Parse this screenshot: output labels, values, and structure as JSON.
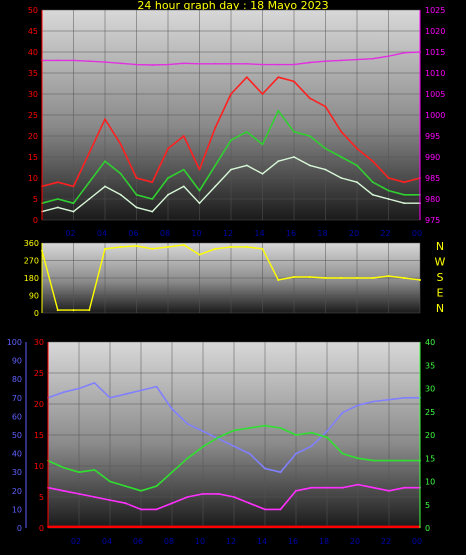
{
  "title": "24 hour graph day : 18 Mayo 2023",
  "colors": {
    "gust": "#ff2020",
    "speed_avg": "#30d030",
    "speed": "#d8f8d8",
    "pressure": "#e030e0",
    "direction": "#ffff00",
    "temperature": "#ff30ff",
    "humidity": "#8080ff",
    "tempB": "#30e030",
    "rain": "#ff0000",
    "axis_left1": "#ff0000",
    "axis_right1": "#ff00ff",
    "axis_blue": "#6060ff",
    "axis_green": "#40ff40",
    "tick_x": "#0000aa"
  },
  "direction_labels": [
    "N",
    "W",
    "S",
    "E",
    "N"
  ],
  "chart_data": [
    {
      "type": "line",
      "name": "wind",
      "xticks": [
        "02",
        "04",
        "06",
        "08",
        "10",
        "12",
        "14",
        "16",
        "18",
        "20",
        "22",
        "00"
      ],
      "y_left_ticks": [
        "0",
        "5",
        "10",
        "15",
        "20",
        "25",
        "30",
        "35",
        "40",
        "45",
        "50"
      ],
      "y_right_ticks": [
        "975",
        "980",
        "985",
        "990",
        "995",
        "1000",
        "1005",
        "1010",
        "1015",
        "1020",
        "1025"
      ],
      "ylim": [
        0,
        50
      ],
      "ylim_right": [
        975,
        1025
      ],
      "x": [
        0,
        1,
        2,
        3,
        4,
        5,
        6,
        7,
        8,
        9,
        10,
        11,
        12,
        13,
        14,
        15,
        16,
        17,
        18,
        19,
        20,
        21,
        22,
        23,
        24
      ],
      "series": [
        {
          "key": "gust",
          "values": [
            8,
            9,
            8,
            16,
            24,
            18,
            10,
            9,
            17,
            20,
            12,
            22,
            30,
            34,
            30,
            34,
            33,
            29,
            27,
            21,
            17,
            14,
            10,
            9,
            10
          ]
        },
        {
          "key": "speed_avg",
          "values": [
            4,
            5,
            4,
            9,
            14,
            11,
            6,
            5,
            10,
            12,
            7,
            13,
            19,
            21,
            18,
            26,
            21,
            20,
            17,
            15,
            13,
            9,
            7,
            6,
            6
          ]
        },
        {
          "key": "speed",
          "values": [
            2,
            3,
            2,
            5,
            8,
            6,
            3,
            2,
            6,
            8,
            4,
            8,
            12,
            13,
            11,
            14,
            15,
            13,
            12,
            10,
            9,
            6,
            5,
            4,
            4
          ]
        },
        {
          "key": "pressure",
          "values": [
            1013,
            1013,
            1013,
            1012.8,
            1012.6,
            1012.3,
            1012,
            1011.9,
            1012,
            1012.3,
            1012.2,
            1012.2,
            1012.2,
            1012.2,
            1012,
            1012,
            1012,
            1012.5,
            1012.8,
            1013,
            1013.2,
            1013.4,
            1014,
            1014.8,
            1015
          ]
        }
      ]
    },
    {
      "type": "line",
      "name": "direction",
      "xticks": [],
      "yticks": [
        "0",
        "90",
        "180",
        "270",
        "360"
      ],
      "ylim": [
        0,
        360
      ],
      "x": [
        0,
        1,
        2,
        3,
        4,
        5,
        6,
        7,
        8,
        9,
        10,
        11,
        12,
        13,
        14,
        15,
        16,
        17,
        18,
        19,
        20,
        21,
        22,
        23,
        24
      ],
      "values": [
        320,
        15,
        15,
        15,
        330,
        340,
        345,
        330,
        340,
        350,
        300,
        330,
        340,
        340,
        330,
        170,
        185,
        185,
        180,
        180,
        180,
        180,
        190,
        180,
        170
      ]
    },
    {
      "type": "line",
      "name": "temperature-humidity",
      "xticks": [
        "02",
        "04",
        "06",
        "08",
        "10",
        "12",
        "14",
        "16",
        "18",
        "20",
        "22",
        "00"
      ],
      "y_left_ticks_blue": [
        "0",
        "10",
        "20",
        "30",
        "40",
        "50",
        "60",
        "70",
        "80",
        "90",
        "100"
      ],
      "y_left_ticks_red": [
        "0",
        "5",
        "10",
        "15",
        "20",
        "25",
        "30"
      ],
      "y_right_ticks": [
        "0",
        "5",
        "10",
        "15",
        "20",
        "25",
        "30",
        "35",
        "40"
      ],
      "ylim_blue": [
        0,
        100
      ],
      "ylim_red": [
        0,
        30
      ],
      "ylim_right": [
        0,
        40
      ],
      "x": [
        0,
        1,
        2,
        3,
        4,
        5,
        6,
        7,
        8,
        9,
        10,
        11,
        12,
        13,
        14,
        15,
        16,
        17,
        18,
        19,
        20,
        21,
        22,
        23,
        24
      ],
      "series": [
        {
          "key": "humidity",
          "axis": "blue",
          "values": [
            70,
            73,
            75,
            78,
            70,
            72,
            74,
            76,
            64,
            56,
            52,
            48,
            44,
            40,
            32,
            30,
            40,
            44,
            52,
            62,
            66,
            68,
            69,
            70,
            70
          ]
        },
        {
          "key": "tempB",
          "axis": "right",
          "values": [
            14.5,
            13,
            12,
            12.5,
            10,
            9,
            8,
            9,
            12,
            15,
            17.5,
            19.5,
            21,
            21.5,
            22,
            21.5,
            20,
            20.5,
            19.5,
            16,
            15,
            14.5,
            14.5,
            14.5,
            14.5
          ]
        },
        {
          "key": "temperature",
          "axis": "red",
          "values": [
            6.5,
            6,
            5.5,
            5,
            4.5,
            4,
            3,
            3,
            4,
            5,
            5.5,
            5.5,
            5,
            4,
            3,
            3,
            6,
            6.5,
            6.5,
            6.5,
            7,
            6.5,
            6,
            6.5,
            6.5
          ]
        },
        {
          "key": "rain",
          "axis": "red",
          "values": [
            0.2,
            0.2,
            0.2,
            0.2,
            0.2,
            0.2,
            0.2,
            0.2,
            0.2,
            0.2,
            0.2,
            0.2,
            0.2,
            0.2,
            0.2,
            0.2,
            0.2,
            0.2,
            0.2,
            0.2,
            0.2,
            0.2,
            0.2,
            0.2,
            0.2
          ]
        }
      ]
    }
  ]
}
